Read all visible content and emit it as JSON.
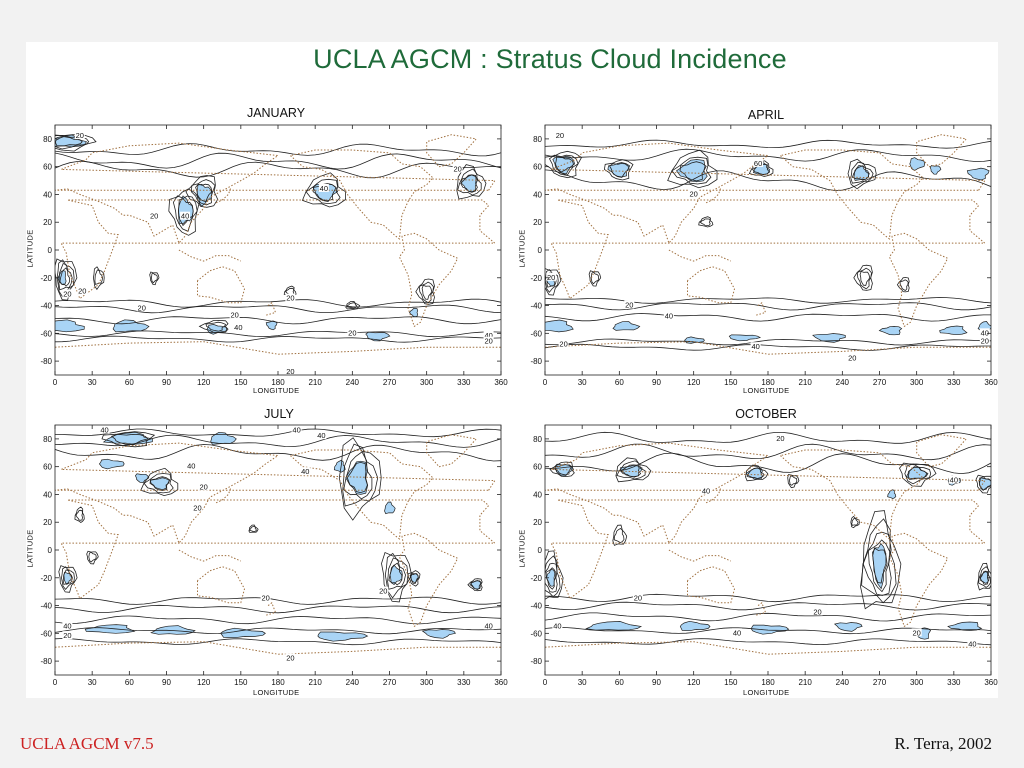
{
  "title": "UCLA AGCM : Stratus Cloud Incidence",
  "footer": {
    "left": "UCLA AGCM v7.5",
    "right": "R. Terra, 2002"
  },
  "colors": {
    "title": "#1f6b3a",
    "fill": "#a9d4f5",
    "contour": "#222222",
    "coast": "#a0703f",
    "footer_left": "#cc2222"
  },
  "chart_data": [
    {
      "type": "contour",
      "title": "JANUARY",
      "xlabel": "LONGITUDE",
      "ylabel": "LATITUDE",
      "xlim": [
        0,
        360
      ],
      "ylim": [
        -90,
        90
      ],
      "xticks": [
        "0",
        "30",
        "60",
        "90",
        "120",
        "150",
        "180",
        "210",
        "240",
        "270",
        "300",
        "330",
        "360"
      ],
      "yticks": [
        "80",
        "60",
        "40",
        "20",
        "0",
        "-20",
        "-40",
        "-60",
        "-80"
      ],
      "contour_labels": [
        {
          "text": "20",
          "lon": 20,
          "lat": 82
        },
        {
          "text": "20",
          "lon": 80,
          "lat": 24
        },
        {
          "text": "40",
          "lon": 105,
          "lat": 24
        },
        {
          "text": "20",
          "lon": 325,
          "lat": 58
        },
        {
          "text": "40",
          "lon": 217,
          "lat": 44
        },
        {
          "text": "20",
          "lon": 10,
          "lat": -32
        },
        {
          "text": "20",
          "lon": 70,
          "lat": -42
        },
        {
          "text": "20",
          "lon": 145,
          "lat": -47
        },
        {
          "text": "20",
          "lon": 190,
          "lat": -35
        },
        {
          "text": "40",
          "lon": 148,
          "lat": -56
        },
        {
          "text": "20",
          "lon": 240,
          "lat": -60
        },
        {
          "text": "20",
          "lon": 190,
          "lat": -88
        },
        {
          "text": "40",
          "lon": 350,
          "lat": -62
        },
        {
          "text": "20",
          "lon": 350,
          "lat": -66
        },
        {
          "text": "20",
          "lon": 22,
          "lat": -30
        }
      ]
    },
    {
      "type": "contour",
      "title": "APRIL",
      "xlabel": "LONGITUDE",
      "ylabel": "LATITUDE",
      "xlim": [
        0,
        360
      ],
      "ylim": [
        -90,
        90
      ],
      "xticks": [
        "0",
        "30",
        "60",
        "90",
        "120",
        "150",
        "180",
        "210",
        "240",
        "270",
        "300",
        "330",
        "360"
      ],
      "yticks": [
        "80",
        "60",
        "40",
        "20",
        "0",
        "-20",
        "-40",
        "-60",
        "-80"
      ],
      "contour_labels": [
        {
          "text": "20",
          "lon": 12,
          "lat": 82
        },
        {
          "text": "60",
          "lon": 172,
          "lat": 62
        },
        {
          "text": "20",
          "lon": 120,
          "lat": 40
        },
        {
          "text": "20",
          "lon": 5,
          "lat": -20
        },
        {
          "text": "20",
          "lon": 68,
          "lat": -40
        },
        {
          "text": "40",
          "lon": 100,
          "lat": -48
        },
        {
          "text": "20",
          "lon": 15,
          "lat": -68
        },
        {
          "text": "40",
          "lon": 170,
          "lat": -70
        },
        {
          "text": "20",
          "lon": 248,
          "lat": -78
        },
        {
          "text": "20",
          "lon": 355,
          "lat": -66
        },
        {
          "text": "40",
          "lon": 355,
          "lat": -60
        }
      ]
    },
    {
      "type": "contour",
      "title": "JULY",
      "xlabel": "LONGITUDE",
      "ylabel": "LATITUDE",
      "xlim": [
        0,
        360
      ],
      "ylim": [
        -90,
        90
      ],
      "xticks": [
        "0",
        "30",
        "60",
        "90",
        "120",
        "150",
        "180",
        "210",
        "240",
        "270",
        "300",
        "330",
        "360"
      ],
      "yticks": [
        "80",
        "60",
        "40",
        "20",
        "0",
        "-20",
        "-40",
        "-60",
        "-80"
      ],
      "contour_labels": [
        {
          "text": "40",
          "lon": 40,
          "lat": 86
        },
        {
          "text": "40",
          "lon": 195,
          "lat": 86
        },
        {
          "text": "40",
          "lon": 215,
          "lat": 82
        },
        {
          "text": "40",
          "lon": 110,
          "lat": 60
        },
        {
          "text": "20",
          "lon": 120,
          "lat": 45
        },
        {
          "text": "40",
          "lon": 202,
          "lat": 56
        },
        {
          "text": "20",
          "lon": 115,
          "lat": 30
        },
        {
          "text": "20",
          "lon": 265,
          "lat": -30
        },
        {
          "text": "20",
          "lon": 170,
          "lat": -35
        },
        {
          "text": "40",
          "lon": 10,
          "lat": -55
        },
        {
          "text": "20",
          "lon": 10,
          "lat": -62
        },
        {
          "text": "40",
          "lon": 350,
          "lat": -55
        },
        {
          "text": "20",
          "lon": 190,
          "lat": -78
        }
      ]
    },
    {
      "type": "contour",
      "title": "OCTOBER",
      "xlabel": "LONGITUDE",
      "ylabel": "LATITUDE",
      "xlim": [
        0,
        360
      ],
      "ylim": [
        -90,
        90
      ],
      "xticks": [
        "0",
        "30",
        "60",
        "90",
        "120",
        "150",
        "180",
        "210",
        "240",
        "270",
        "300",
        "330",
        "360"
      ],
      "yticks": [
        "80",
        "60",
        "40",
        "20",
        "0",
        "-20",
        "-40",
        "-60",
        "-80"
      ],
      "contour_labels": [
        {
          "text": "20",
          "lon": 190,
          "lat": 80
        },
        {
          "text": "40",
          "lon": 130,
          "lat": 42
        },
        {
          "text": "40",
          "lon": 330,
          "lat": 50
        },
        {
          "text": "20",
          "lon": 75,
          "lat": -35
        },
        {
          "text": "40",
          "lon": 10,
          "lat": -55
        },
        {
          "text": "20",
          "lon": 220,
          "lat": -45
        },
        {
          "text": "40",
          "lon": 155,
          "lat": -60
        },
        {
          "text": "20",
          "lon": 300,
          "lat": -60
        },
        {
          "text": "40",
          "lon": 345,
          "lat": -68
        }
      ]
    }
  ]
}
